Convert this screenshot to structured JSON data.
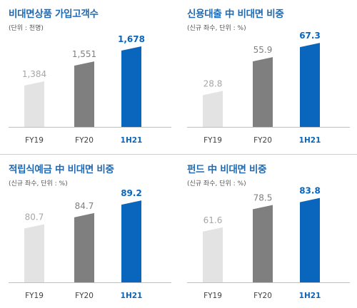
{
  "panels": [
    {
      "title": "비대면상품 가입고객수",
      "unit": "(단위 : 천명)"
    },
    {
      "title": "신용대출 中 비대면 비중",
      "unit": "(신규 좌수, 단위 : %)"
    },
    {
      "title": "적립식예금 中 비대면 비중",
      "unit": "(신규 좌수, 단위 : %)"
    },
    {
      "title": "펀드 中 비대면 비중",
      "unit": "(신규 좌수, 단위 : %)"
    }
  ],
  "colors": {
    "title": "#1f6ab3",
    "fy19_bar": "#e3e3e3",
    "fy20_bar": "#7f7f7f",
    "h21_bar": "#0a66bc",
    "fy19_label": "#a6a6a6",
    "fy20_label": "#7f7f7f",
    "h21_label": "#0a66bc",
    "axis": "#bfbfbf"
  },
  "chart_data": [
    {
      "type": "bar",
      "title": "비대면상품 가입고객수",
      "categories": [
        "FY19",
        "FY20",
        "1H21"
      ],
      "values": [
        1384,
        1551,
        1678
      ],
      "value_labels": [
        "1,384",
        "1,551",
        "1,678"
      ],
      "ylim": [
        1000,
        1720
      ]
    },
    {
      "type": "bar",
      "title": "신용대출 中 비대면 비중",
      "categories": [
        "FY19",
        "FY20",
        "1H21"
      ],
      "values": [
        28.8,
        55.9,
        67.3
      ],
      "value_labels": [
        "28.8",
        "55.9",
        "67.3"
      ],
      "ylim": [
        0,
        68.5
      ]
    },
    {
      "type": "bar",
      "title": "적립식예금 中 비대면 비중",
      "categories": [
        "FY19",
        "FY20",
        "1H21"
      ],
      "values": [
        80.7,
        84.7,
        89.2
      ],
      "value_labels": [
        "80.7",
        "84.7",
        "89.2"
      ],
      "ylim": [
        60,
        90.5
      ]
    },
    {
      "type": "bar",
      "title": "펀드 中 비대면 비중",
      "categories": [
        "FY19",
        "FY20",
        "1H21"
      ],
      "values": [
        61.6,
        78.5,
        83.8
      ],
      "value_labels": [
        "61.6",
        "78.5",
        "83.8"
      ],
      "ylim": [
        20,
        84.7
      ]
    }
  ]
}
